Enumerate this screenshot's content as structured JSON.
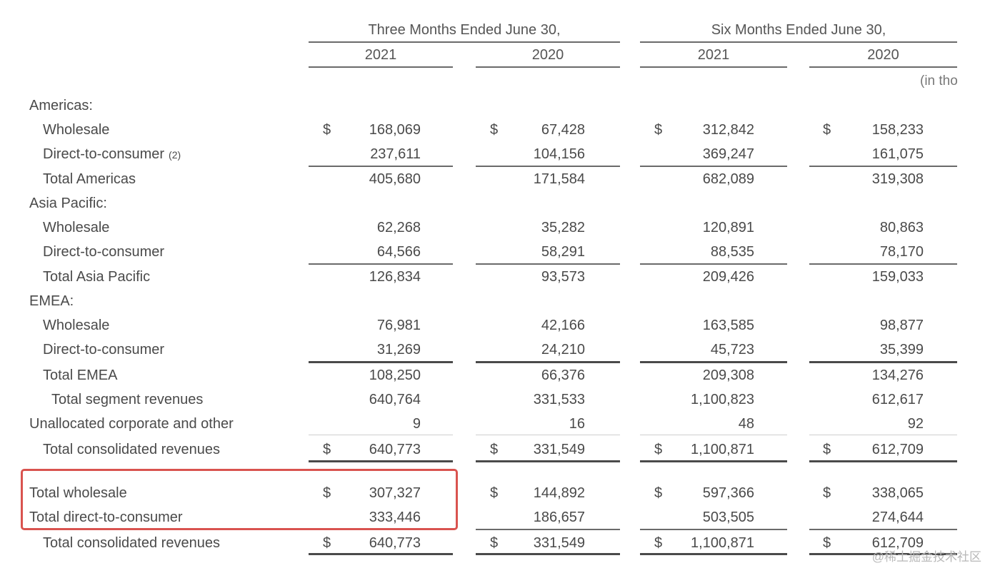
{
  "headers": {
    "three_months": "Three Months Ended June 30,",
    "six_months": "Six Months Ended June 30,",
    "years": [
      "2021",
      "2020",
      "2021",
      "2020"
    ],
    "units": "(in tho"
  },
  "currency_symbol": "$",
  "rows": [
    {
      "label": "Americas:",
      "values": [
        "",
        "",
        "",
        ""
      ]
    },
    {
      "label": "Wholesale",
      "values": [
        "168,069",
        "67,428",
        "312,842",
        "158,233"
      ]
    },
    {
      "label": "Direct-to-consumer",
      "note": "(2)",
      "values": [
        "237,611",
        "104,156",
        "369,247",
        "161,075"
      ]
    },
    {
      "label": "Total Americas",
      "values": [
        "405,680",
        "171,584",
        "682,089",
        "319,308"
      ]
    },
    {
      "label": "Asia Pacific:",
      "values": [
        "",
        "",
        "",
        ""
      ]
    },
    {
      "label": "Wholesale",
      "values": [
        "62,268",
        "35,282",
        "120,891",
        "80,863"
      ]
    },
    {
      "label": "Direct-to-consumer",
      "values": [
        "64,566",
        "58,291",
        "88,535",
        "78,170"
      ]
    },
    {
      "label": "Total Asia Pacific",
      "values": [
        "126,834",
        "93,573",
        "209,426",
        "159,033"
      ]
    },
    {
      "label": "EMEA:",
      "values": [
        "",
        "",
        "",
        ""
      ]
    },
    {
      "label": "Wholesale",
      "values": [
        "76,981",
        "42,166",
        "163,585",
        "98,877"
      ]
    },
    {
      "label": "Direct-to-consumer",
      "values": [
        "31,269",
        "24,210",
        "45,723",
        "35,399"
      ]
    },
    {
      "label": "Total EMEA",
      "values": [
        "108,250",
        "66,376",
        "209,308",
        "134,276"
      ]
    },
    {
      "label": "Total segment revenues",
      "values": [
        "640,764",
        "331,533",
        "1,100,823",
        "612,617"
      ]
    },
    {
      "label": "Unallocated corporate and other",
      "values": [
        "9",
        "16",
        "48",
        "92"
      ]
    },
    {
      "label": "Total consolidated revenues",
      "values": [
        "640,773",
        "331,549",
        "1,100,871",
        "612,709"
      ]
    },
    {
      "label": "Total wholesale",
      "values": [
        "307,327",
        "144,892",
        "597,366",
        "338,065"
      ]
    },
    {
      "label": "Total direct-to-consumer",
      "values": [
        "333,446",
        "186,657",
        "503,505",
        "274,644"
      ]
    },
    {
      "label": "Total consolidated revenues",
      "values": [
        "640,773",
        "331,549",
        "1,100,871",
        "612,709"
      ]
    }
  ],
  "watermark": "@稀土掘金技术社区",
  "colors": {
    "highlight": "#d9534f",
    "text": "#4a4a4a"
  }
}
